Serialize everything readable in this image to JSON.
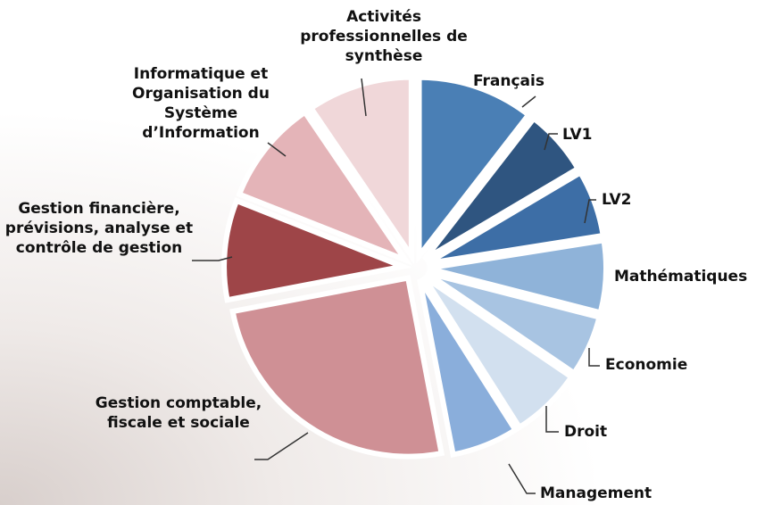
{
  "chart_data": {
    "type": "pie",
    "categories": [
      "Français",
      "LV1",
      "LV2",
      "Mathématiques",
      "Economie",
      "Droit",
      "Management",
      "Gestion comptable, fiscale et sociale",
      "Gestion financière, prévisions, analyse et contrôle de gestion",
      "Informatique et Organisation du Système d’Information",
      "Activités professionnelles de synthèse"
    ],
    "values": [
      10.5,
      6,
      6,
      6.5,
      5.5,
      6.5,
      6,
      25,
      9,
      9.5,
      9.5
    ],
    "colors": [
      "#4a7fb5",
      "#2f5580",
      "#3d6ea6",
      "#8fb3d9",
      "#a8c4e2",
      "#d2e0ef",
      "#8aaedb",
      "#cf9095",
      "#9e4548",
      "#e4b4b8",
      "#f0d7d9"
    ]
  }
}
